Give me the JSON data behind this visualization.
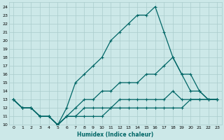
{
  "xlabel": "Humidex (Indice chaleur)",
  "bg_color": "#cce8e8",
  "grid_color": "#aacccc",
  "line_color": "#006666",
  "xlim": [
    -0.5,
    23.5
  ],
  "ylim": [
    10,
    24.5
  ],
  "xticks": [
    0,
    1,
    2,
    3,
    4,
    5,
    6,
    7,
    8,
    9,
    10,
    11,
    12,
    13,
    14,
    15,
    16,
    17,
    18,
    19,
    20,
    21,
    22,
    23
  ],
  "yticks": [
    10,
    11,
    12,
    13,
    14,
    15,
    16,
    17,
    18,
    19,
    20,
    21,
    22,
    23,
    24
  ],
  "line1_x": [
    0,
    1,
    2,
    3,
    4,
    5,
    6,
    7,
    8,
    9,
    10,
    11,
    12,
    13,
    14,
    15,
    16,
    17,
    18,
    19,
    20,
    21,
    22,
    23
  ],
  "line1_y": [
    13,
    12,
    12,
    11,
    11,
    10,
    12,
    15,
    16,
    17,
    18,
    20,
    21,
    22,
    23,
    23,
    24,
    21,
    18,
    16,
    14,
    14,
    13,
    13
  ],
  "line2_x": [
    0,
    1,
    2,
    3,
    4,
    5,
    6,
    7,
    8,
    9,
    10,
    11,
    12,
    13,
    14,
    15,
    16,
    17,
    18,
    19,
    20,
    21,
    22,
    23
  ],
  "line2_y": [
    13,
    12,
    12,
    11,
    11,
    10,
    11,
    12,
    13,
    13,
    14,
    14,
    15,
    15,
    15,
    16,
    16,
    17,
    18,
    16,
    16,
    14,
    13,
    13
  ],
  "line3_x": [
    0,
    1,
    2,
    3,
    4,
    5,
    6,
    7,
    8,
    9,
    10,
    11,
    12,
    13,
    14,
    15,
    16,
    17,
    18,
    19,
    20,
    21,
    22,
    23
  ],
  "line3_y": [
    13,
    12,
    12,
    11,
    11,
    10,
    11,
    11,
    12,
    12,
    12,
    12,
    13,
    13,
    13,
    13,
    13,
    13,
    14,
    13,
    13,
    13,
    13,
    13
  ],
  "line4_x": [
    0,
    1,
    2,
    3,
    4,
    5,
    6,
    7,
    8,
    9,
    10,
    11,
    12,
    13,
    14,
    15,
    16,
    17,
    18,
    19,
    20,
    21,
    22,
    23
  ],
  "line4_y": [
    13,
    12,
    12,
    11,
    11,
    10,
    11,
    11,
    11,
    11,
    11,
    12,
    12,
    12,
    12,
    12,
    12,
    12,
    12,
    12,
    13,
    13,
    13,
    13
  ]
}
